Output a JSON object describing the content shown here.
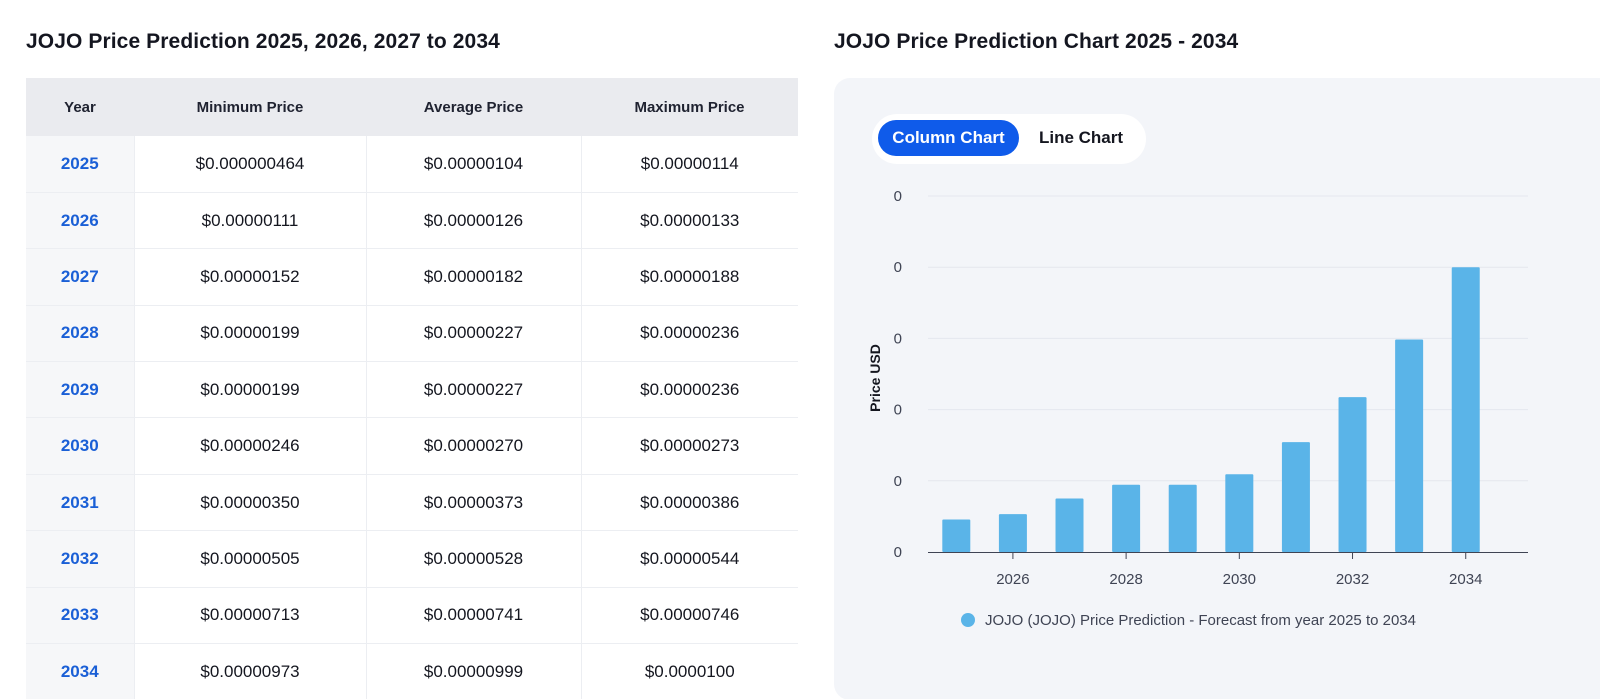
{
  "table_section": {
    "title": "JOJO Price Prediction 2025, 2026, 2027 to 2034",
    "headers": [
      "Year",
      "Minimum Price",
      "Average Price",
      "Maximum Price"
    ],
    "rows": [
      [
        "2025",
        "$0.000000464",
        "$0.00000104",
        "$0.00000114"
      ],
      [
        "2026",
        "$0.00000111",
        "$0.00000126",
        "$0.00000133"
      ],
      [
        "2027",
        "$0.00000152",
        "$0.00000182",
        "$0.00000188"
      ],
      [
        "2028",
        "$0.00000199",
        "$0.00000227",
        "$0.00000236"
      ],
      [
        "2029",
        "$0.00000199",
        "$0.00000227",
        "$0.00000236"
      ],
      [
        "2030",
        "$0.00000246",
        "$0.00000270",
        "$0.00000273"
      ],
      [
        "2031",
        "$0.00000350",
        "$0.00000373",
        "$0.00000386"
      ],
      [
        "2032",
        "$0.00000505",
        "$0.00000528",
        "$0.00000544"
      ],
      [
        "2033",
        "$0.00000713",
        "$0.00000741",
        "$0.00000746"
      ],
      [
        "2034",
        "$0.00000973",
        "$0.00000999",
        "$0.0000100"
      ]
    ],
    "colors": {
      "year_link": "#1a5fd6",
      "header_bg": "#eaebef"
    }
  },
  "chart_section": {
    "title": "JOJO Price Prediction Chart 2025 - 2034",
    "toggle": {
      "active_label": "Column Chart",
      "inactive_label": "Line Chart"
    },
    "colors": {
      "toggle_active": "#0f5bea",
      "bar": "#5ab4e8",
      "panel_bg": "#f3f5f9"
    }
  },
  "chart_data": {
    "type": "bar",
    "x": [
      2025,
      2026,
      2027,
      2028,
      2029,
      2030,
      2031,
      2032,
      2033,
      2034
    ],
    "values": [
      1.14e-06,
      1.33e-06,
      1.88e-06,
      2.36e-06,
      2.36e-06,
      2.73e-06,
      3.86e-06,
      5.44e-06,
      7.46e-06,
      1e-05
    ],
    "xticks": [
      "2026",
      "2028",
      "2030",
      "2032",
      "2034"
    ],
    "xtick_values": [
      2026,
      2028,
      2030,
      2032,
      2034
    ],
    "yticks": [
      "0",
      "0",
      "0",
      "0",
      "0",
      "0"
    ],
    "ylim": [
      0,
      1.25e-05
    ],
    "ylabel": "Price USD",
    "series": [
      {
        "name": "JOJO (JOJO) Price Prediction - Forecast from year 2025 to 2034",
        "values": [
          1.14e-06,
          1.33e-06,
          1.88e-06,
          2.36e-06,
          2.36e-06,
          2.73e-06,
          3.86e-06,
          5.44e-06,
          7.46e-06,
          1e-05
        ]
      }
    ],
    "grid": true,
    "legend": "bottom"
  }
}
